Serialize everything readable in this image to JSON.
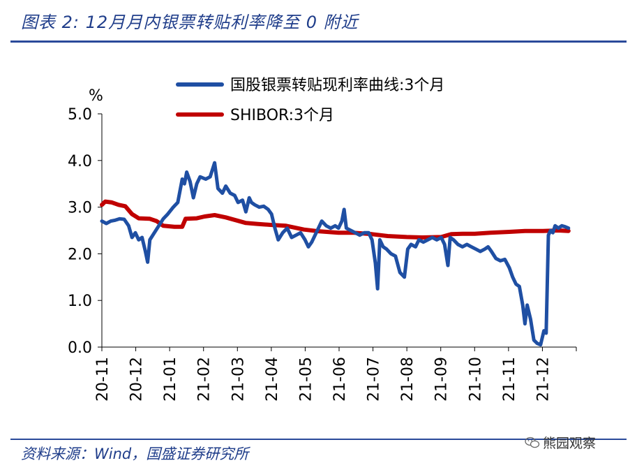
{
  "header": {
    "title": "图表 2: 12月月内银票转贴利率降至 0 附近"
  },
  "footer": {
    "source": "资料来源：Wind，国盛证券研究所",
    "watermark": "熊园观察",
    "watermark_icon": "wechat-icon"
  },
  "chart_data": {
    "type": "line",
    "yunit": "%",
    "ylim": [
      0,
      5
    ],
    "yticks": [
      "0.0",
      "1.0",
      "2.0",
      "3.0",
      "4.0",
      "5.0"
    ],
    "xlim": [
      "2020-11-01",
      "2021-12-31"
    ],
    "xticks": [
      "20-11",
      "20-12",
      "21-01",
      "21-02",
      "21-03",
      "21-04",
      "21-05",
      "21-06",
      "21-07",
      "21-08",
      "21-09",
      "21-10",
      "21-11",
      "21-12"
    ],
    "legend_position": "top",
    "series": [
      {
        "name": "国股银票转贴现利率曲线:3个月",
        "color": "#1f4fa3",
        "points": [
          [
            "2020-11-01",
            2.7
          ],
          [
            "2020-11-05",
            2.65
          ],
          [
            "2020-11-09",
            2.7
          ],
          [
            "2020-11-13",
            2.72
          ],
          [
            "2020-11-17",
            2.75
          ],
          [
            "2020-11-21",
            2.74
          ],
          [
            "2020-11-25",
            2.6
          ],
          [
            "2020-11-28",
            2.35
          ],
          [
            "2020-12-01",
            2.45
          ],
          [
            "2020-12-04",
            2.3
          ],
          [
            "2020-12-07",
            2.35
          ],
          [
            "2020-12-10",
            2.05
          ],
          [
            "2020-12-12",
            1.82
          ],
          [
            "2020-12-14",
            2.3
          ],
          [
            "2020-12-18",
            2.45
          ],
          [
            "2020-12-22",
            2.6
          ],
          [
            "2020-12-26",
            2.75
          ],
          [
            "2020-12-30",
            2.85
          ],
          [
            "2021-01-04",
            3.0
          ],
          [
            "2021-01-08",
            3.1
          ],
          [
            "2021-01-12",
            3.6
          ],
          [
            "2021-01-14",
            3.5
          ],
          [
            "2021-01-16",
            3.75
          ],
          [
            "2021-01-19",
            3.55
          ],
          [
            "2021-01-22",
            3.2
          ],
          [
            "2021-01-25",
            3.5
          ],
          [
            "2021-01-28",
            3.65
          ],
          [
            "2021-02-02",
            3.6
          ],
          [
            "2021-02-06",
            3.65
          ],
          [
            "2021-02-10",
            3.95
          ],
          [
            "2021-02-13",
            3.4
          ],
          [
            "2021-02-17",
            3.3
          ],
          [
            "2021-02-20",
            3.45
          ],
          [
            "2021-02-24",
            3.3
          ],
          [
            "2021-02-28",
            3.25
          ],
          [
            "2021-03-03",
            3.1
          ],
          [
            "2021-03-07",
            3.15
          ],
          [
            "2021-03-10",
            2.9
          ],
          [
            "2021-03-13",
            3.2
          ],
          [
            "2021-03-15",
            3.1
          ],
          [
            "2021-03-18",
            3.05
          ],
          [
            "2021-03-22",
            3.0
          ],
          [
            "2021-03-26",
            3.02
          ],
          [
            "2021-03-30",
            2.95
          ],
          [
            "2021-04-02",
            2.85
          ],
          [
            "2021-04-05",
            2.55
          ],
          [
            "2021-04-08",
            2.3
          ],
          [
            "2021-04-12",
            2.45
          ],
          [
            "2021-04-16",
            2.55
          ],
          [
            "2021-04-20",
            2.35
          ],
          [
            "2021-04-24",
            2.4
          ],
          [
            "2021-04-28",
            2.45
          ],
          [
            "2021-05-02",
            2.3
          ],
          [
            "2021-05-05",
            2.15
          ],
          [
            "2021-05-08",
            2.25
          ],
          [
            "2021-05-11",
            2.4
          ],
          [
            "2021-05-14",
            2.55
          ],
          [
            "2021-05-17",
            2.7
          ],
          [
            "2021-05-21",
            2.6
          ],
          [
            "2021-05-25",
            2.55
          ],
          [
            "2021-05-29",
            2.6
          ],
          [
            "2021-06-01",
            2.55
          ],
          [
            "2021-06-04",
            2.7
          ],
          [
            "2021-06-06",
            2.95
          ],
          [
            "2021-06-08",
            2.55
          ],
          [
            "2021-06-12",
            2.5
          ],
          [
            "2021-06-16",
            2.45
          ],
          [
            "2021-06-20",
            2.4
          ],
          [
            "2021-06-24",
            2.45
          ],
          [
            "2021-06-28",
            2.45
          ],
          [
            "2021-07-01",
            2.3
          ],
          [
            "2021-07-04",
            1.8
          ],
          [
            "2021-07-06",
            1.25
          ],
          [
            "2021-07-08",
            2.3
          ],
          [
            "2021-07-11",
            2.15
          ],
          [
            "2021-07-14",
            2.1
          ],
          [
            "2021-07-18",
            2.0
          ],
          [
            "2021-07-22",
            1.95
          ],
          [
            "2021-07-26",
            1.6
          ],
          [
            "2021-07-30",
            1.5
          ],
          [
            "2021-08-02",
            2.1
          ],
          [
            "2021-08-05",
            2.2
          ],
          [
            "2021-08-09",
            2.15
          ],
          [
            "2021-08-12",
            2.3
          ],
          [
            "2021-08-16",
            2.25
          ],
          [
            "2021-08-20",
            2.3
          ],
          [
            "2021-08-24",
            2.35
          ],
          [
            "2021-08-28",
            2.3
          ],
          [
            "2021-09-01",
            2.35
          ],
          [
            "2021-09-04",
            2.2
          ],
          [
            "2021-09-07",
            1.75
          ],
          [
            "2021-09-09",
            2.35
          ],
          [
            "2021-09-12",
            2.3
          ],
          [
            "2021-09-16",
            2.2
          ],
          [
            "2021-09-20",
            2.15
          ],
          [
            "2021-09-24",
            2.2
          ],
          [
            "2021-09-28",
            2.15
          ],
          [
            "2021-10-02",
            2.1
          ],
          [
            "2021-10-06",
            2.05
          ],
          [
            "2021-10-10",
            2.1
          ],
          [
            "2021-10-13",
            2.15
          ],
          [
            "2021-10-16",
            2.05
          ],
          [
            "2021-10-20",
            1.9
          ],
          [
            "2021-10-24",
            1.85
          ],
          [
            "2021-10-28",
            1.88
          ],
          [
            "2021-11-01",
            1.7
          ],
          [
            "2021-11-04",
            1.5
          ],
          [
            "2021-11-07",
            1.35
          ],
          [
            "2021-11-10",
            1.3
          ],
          [
            "2021-11-13",
            0.9
          ],
          [
            "2021-11-15",
            0.5
          ],
          [
            "2021-11-17",
            0.9
          ],
          [
            "2021-11-20",
            0.6
          ],
          [
            "2021-11-23",
            0.15
          ],
          [
            "2021-11-26",
            0.08
          ],
          [
            "2021-11-29",
            0.05
          ],
          [
            "2021-12-02",
            0.35
          ],
          [
            "2021-12-04",
            0.3
          ],
          [
            "2021-12-06",
            2.4
          ],
          [
            "2021-12-08",
            2.5
          ],
          [
            "2021-12-10",
            2.45
          ],
          [
            "2021-12-12",
            2.6
          ],
          [
            "2021-12-15",
            2.55
          ],
          [
            "2021-12-18",
            2.6
          ],
          [
            "2021-12-21",
            2.58
          ],
          [
            "2021-12-24",
            2.55
          ]
        ]
      },
      {
        "name": "SHIBOR:3个月",
        "color": "#c00000",
        "points": [
          [
            "2020-11-01",
            3.05
          ],
          [
            "2020-11-04",
            3.12
          ],
          [
            "2020-11-10",
            3.1
          ],
          [
            "2020-11-16",
            3.05
          ],
          [
            "2020-11-22",
            3.02
          ],
          [
            "2020-11-28",
            2.85
          ],
          [
            "2020-12-04",
            2.76
          ],
          [
            "2020-12-14",
            2.75
          ],
          [
            "2020-12-20",
            2.7
          ],
          [
            "2020-12-26",
            2.6
          ],
          [
            "2021-01-05",
            2.58
          ],
          [
            "2021-01-12",
            2.58
          ],
          [
            "2021-01-15",
            2.75
          ],
          [
            "2021-01-25",
            2.76
          ],
          [
            "2021-02-01",
            2.8
          ],
          [
            "2021-02-10",
            2.83
          ],
          [
            "2021-02-20",
            2.78
          ],
          [
            "2021-03-01",
            2.72
          ],
          [
            "2021-03-10",
            2.66
          ],
          [
            "2021-03-20",
            2.64
          ],
          [
            "2021-04-01",
            2.62
          ],
          [
            "2021-04-15",
            2.6
          ],
          [
            "2021-05-01",
            2.52
          ],
          [
            "2021-05-15",
            2.48
          ],
          [
            "2021-06-01",
            2.45
          ],
          [
            "2021-06-15",
            2.45
          ],
          [
            "2021-07-01",
            2.42
          ],
          [
            "2021-07-15",
            2.38
          ],
          [
            "2021-08-01",
            2.36
          ],
          [
            "2021-08-15",
            2.35
          ],
          [
            "2021-09-01",
            2.36
          ],
          [
            "2021-09-10",
            2.42
          ],
          [
            "2021-09-20",
            2.43
          ],
          [
            "2021-10-01",
            2.43
          ],
          [
            "2021-10-15",
            2.45
          ],
          [
            "2021-11-01",
            2.47
          ],
          [
            "2021-11-15",
            2.49
          ],
          [
            "2021-12-01",
            2.49
          ],
          [
            "2021-12-15",
            2.5
          ],
          [
            "2021-12-24",
            2.49
          ]
        ]
      }
    ]
  }
}
